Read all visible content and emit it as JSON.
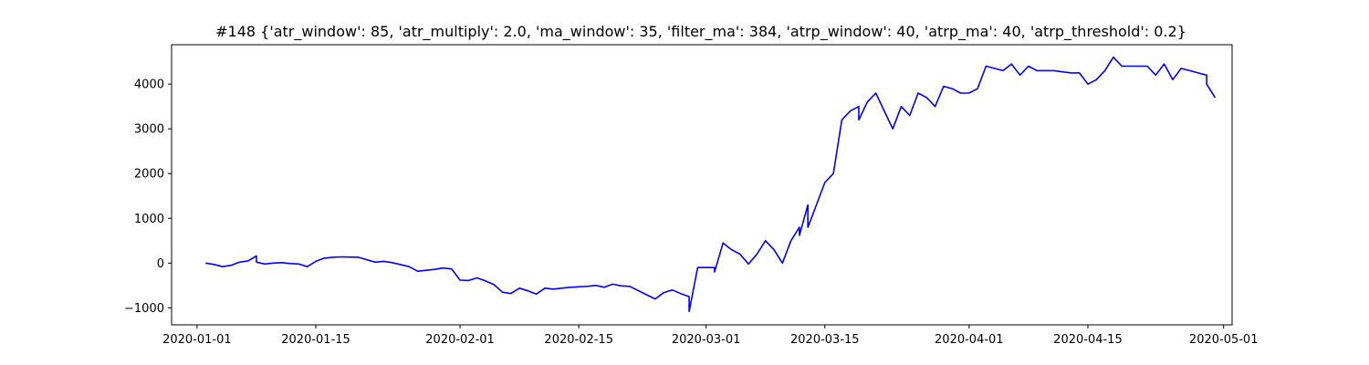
{
  "chart_data": {
    "type": "line",
    "title": "#148 {'atr_window': 85, 'atr_multiply': 2.0, 'ma_window': 35, 'filter_ma': 384, 'atrp_window': 40, 'atrp_ma': 40, 'atrp_threshold': 0.2}",
    "xlabel": "",
    "ylabel": "",
    "x_ticks": [
      "2020-01-01",
      "2020-01-15",
      "2020-02-01",
      "2020-02-15",
      "2020-03-01",
      "2020-03-15",
      "2020-04-01",
      "2020-04-15",
      "2020-05-01"
    ],
    "y_ticks": [
      -1000,
      0,
      1000,
      2000,
      3000,
      4000
    ],
    "xlim": [
      "2019-12-29",
      "2020-05-02"
    ],
    "ylim": [
      -1380,
      4880
    ],
    "grid": false,
    "series": [
      {
        "color": "#0000ff",
        "x": [
          "2020-01-02",
          "2020-01-03",
          "2020-01-04",
          "2020-01-05",
          "2020-01-06",
          "2020-01-07",
          "2020-01-08",
          "2020-01-08",
          "2020-01-09",
          "2020-01-10",
          "2020-01-11",
          "2020-01-12",
          "2020-01-13",
          "2020-01-14",
          "2020-01-15",
          "2020-01-16",
          "2020-01-17",
          "2020-01-18",
          "2020-01-20",
          "2020-01-22",
          "2020-01-23",
          "2020-01-24",
          "2020-01-26",
          "2020-01-27",
          "2020-01-29",
          "2020-01-30",
          "2020-01-31",
          "2020-02-01",
          "2020-02-02",
          "2020-02-03",
          "2020-02-04",
          "2020-02-05",
          "2020-02-06",
          "2020-02-07",
          "2020-02-08",
          "2020-02-09",
          "2020-02-10",
          "2020-02-11",
          "2020-02-12",
          "2020-02-13",
          "2020-02-14",
          "2020-02-16",
          "2020-02-17",
          "2020-02-18",
          "2020-02-19",
          "2020-02-20",
          "2020-02-21",
          "2020-02-23",
          "2020-02-24",
          "2020-02-25",
          "2020-02-26",
          "2020-02-27",
          "2020-02-28",
          "2020-02-28",
          "2020-02-29",
          "2020-03-01",
          "2020-03-02",
          "2020-03-02",
          "2020-03-03",
          "2020-03-04",
          "2020-03-05",
          "2020-03-06",
          "2020-03-07",
          "2020-03-08",
          "2020-03-09",
          "2020-03-10",
          "2020-03-11",
          "2020-03-12",
          "2020-03-12",
          "2020-03-13",
          "2020-03-13",
          "2020-03-14",
          "2020-03-15",
          "2020-03-16",
          "2020-03-17",
          "2020-03-18",
          "2020-03-19",
          "2020-03-19",
          "2020-03-20",
          "2020-03-21",
          "2020-03-22",
          "2020-03-23",
          "2020-03-24",
          "2020-03-25",
          "2020-03-26",
          "2020-03-27",
          "2020-03-28",
          "2020-03-29",
          "2020-03-30",
          "2020-03-31",
          "2020-04-01",
          "2020-04-02",
          "2020-04-03",
          "2020-04-05",
          "2020-04-06",
          "2020-04-07",
          "2020-04-08",
          "2020-04-09",
          "2020-04-11",
          "2020-04-13",
          "2020-04-14",
          "2020-04-15",
          "2020-04-16",
          "2020-04-17",
          "2020-04-18",
          "2020-04-19",
          "2020-04-21",
          "2020-04-22",
          "2020-04-23",
          "2020-04-24",
          "2020-04-25",
          "2020-04-26",
          "2020-04-27",
          "2020-04-28",
          "2020-04-29",
          "2020-04-29",
          "2020-04-30"
        ],
        "y": [
          0,
          -30,
          -80,
          -50,
          20,
          50,
          160,
          20,
          -20,
          0,
          10,
          -10,
          -20,
          -80,
          40,
          110,
          130,
          140,
          130,
          20,
          40,
          10,
          -80,
          -180,
          -140,
          -110,
          -130,
          -380,
          -390,
          -330,
          -400,
          -480,
          -650,
          -680,
          -560,
          -620,
          -690,
          -560,
          -580,
          -560,
          -540,
          -520,
          -500,
          -540,
          -470,
          -510,
          -520,
          -710,
          -800,
          -660,
          -600,
          -680,
          -750,
          -1080,
          -100,
          -100,
          -100,
          -200,
          450,
          300,
          200,
          -20,
          200,
          500,
          300,
          0,
          500,
          800,
          620,
          1300,
          800,
          1300,
          1800,
          2000,
          3200,
          3400,
          3500,
          3200,
          3600,
          3800,
          3400,
          3000,
          3500,
          3300,
          3800,
          3700,
          3500,
          3950,
          3900,
          3800,
          3800,
          3900,
          4400,
          4300,
          4450,
          4200,
          4400,
          4300,
          4300,
          4250,
          4250,
          4000,
          4100,
          4300,
          4600,
          4400,
          4400,
          4400,
          4200,
          4450,
          4100,
          4350,
          4300,
          4250,
          4200,
          4000,
          3700
        ]
      }
    ]
  }
}
